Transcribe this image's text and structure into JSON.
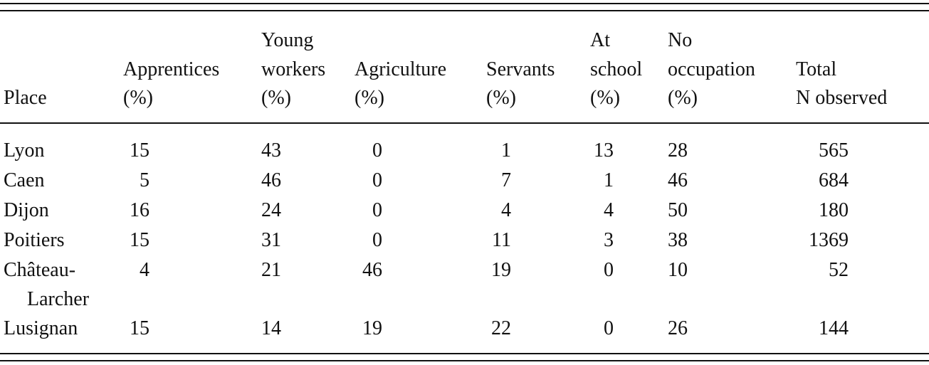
{
  "table": {
    "header": [
      [
        "Place"
      ],
      [
        "Apprentices",
        "(%)"
      ],
      [
        "Young",
        "workers",
        "(%)"
      ],
      [
        "Agriculture",
        "(%)"
      ],
      [
        "Servants",
        "(%)"
      ],
      [
        "At",
        "school",
        "(%)"
      ],
      [
        "No",
        "occupation",
        "(%)"
      ],
      [
        "Total",
        "N observed"
      ]
    ],
    "rows": [
      {
        "place": [
          "Lyon"
        ],
        "values": [
          15,
          43,
          0,
          1,
          13,
          28,
          565
        ]
      },
      {
        "place": [
          "Caen"
        ],
        "values": [
          5,
          46,
          0,
          7,
          1,
          46,
          684
        ]
      },
      {
        "place": [
          "Dijon"
        ],
        "values": [
          16,
          24,
          0,
          4,
          4,
          50,
          180
        ]
      },
      {
        "place": [
          "Poitiers"
        ],
        "values": [
          15,
          31,
          0,
          11,
          3,
          38,
          1369
        ]
      },
      {
        "place": [
          "Château-",
          "Larcher"
        ],
        "values": [
          4,
          21,
          46,
          19,
          0,
          10,
          52
        ]
      },
      {
        "place": [
          "Lusignan"
        ],
        "values": [
          15,
          14,
          19,
          22,
          0,
          26,
          144
        ]
      }
    ]
  }
}
